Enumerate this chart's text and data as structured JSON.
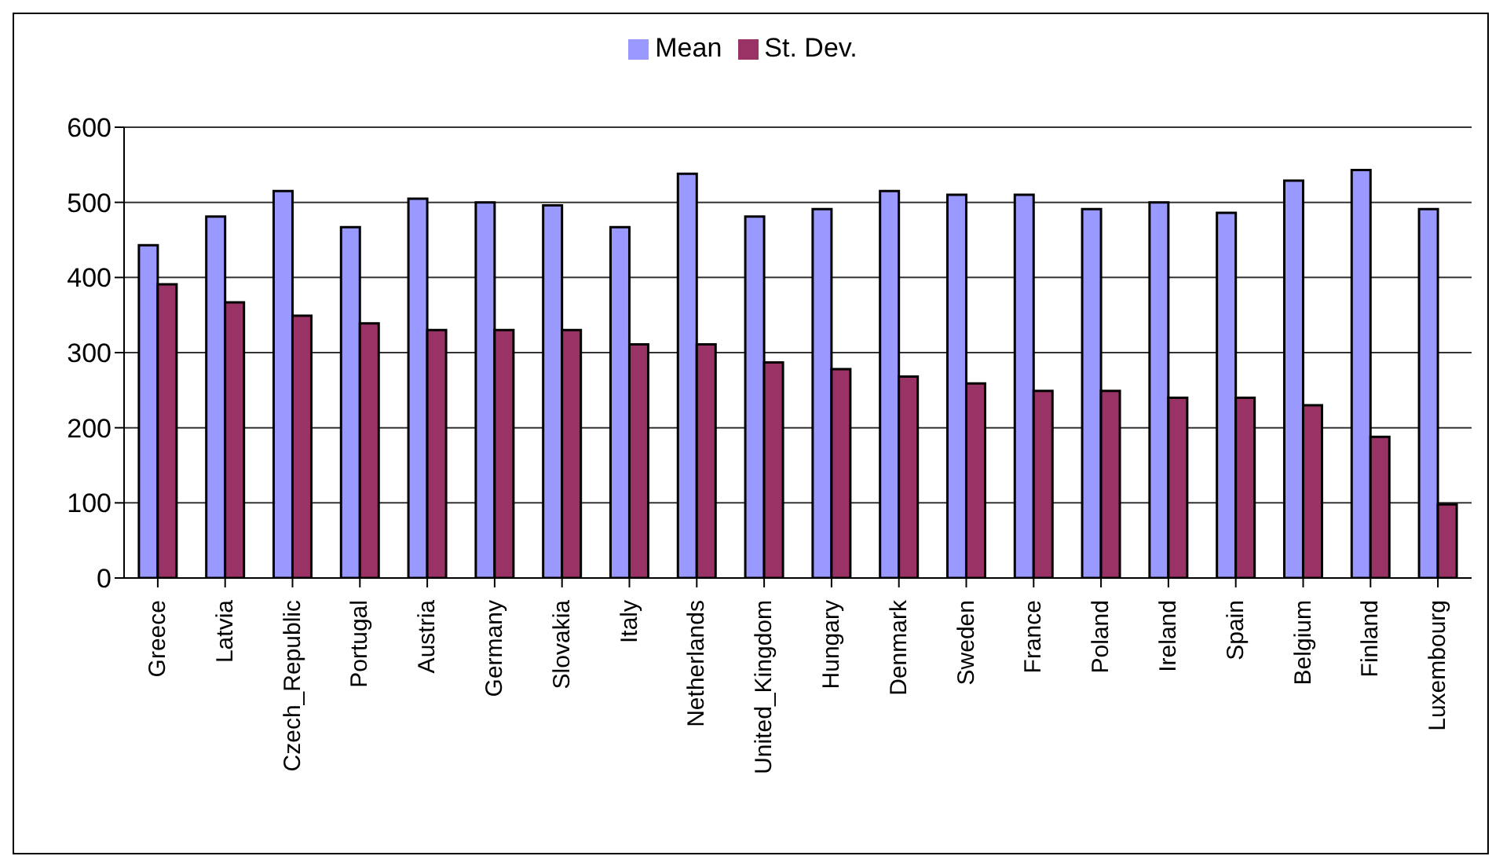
{
  "chart_data": {
    "type": "bar",
    "categories": [
      "Greece",
      "Latvia",
      "Czech_Republic",
      "Portugal",
      "Austria",
      "Germany",
      "Slovakia",
      "Italy",
      "Netherlands",
      "United_Kingdom",
      "Hungary",
      "Denmark",
      "Sweden",
      "France",
      "Poland",
      "Ireland",
      "Spain",
      "Belgium",
      "Finland",
      "Luxembourg"
    ],
    "series": [
      {
        "name": "Mean",
        "color": "#9999ff",
        "values": [
          443,
          481,
          515,
          467,
          505,
          500,
          496,
          467,
          538,
          481,
          491,
          515,
          510,
          510,
          491,
          500,
          486,
          529,
          543,
          491
        ]
      },
      {
        "name": "St. Dev.",
        "color": "#993366",
        "values": [
          391,
          367,
          349,
          339,
          330,
          330,
          330,
          311,
          311,
          287,
          278,
          268,
          259,
          249,
          249,
          240,
          240,
          230,
          188,
          98
        ]
      }
    ],
    "ylim": [
      0,
      600
    ],
    "yticks": [
      0,
      100,
      200,
      300,
      400,
      500,
      600
    ],
    "grid": "y",
    "legend": "top"
  }
}
